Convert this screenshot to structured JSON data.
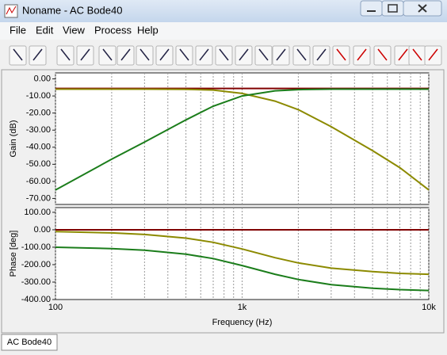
{
  "window": {
    "title": "Noname - AC Bode40"
  },
  "menu": [
    "File",
    "Edit",
    "View",
    "Process",
    "Help"
  ],
  "tab": "AC Bode40",
  "chart_data": [
    {
      "type": "line",
      "ylabel": "Gain (dB)",
      "xscale": "log",
      "xlim": [
        100,
        10000
      ],
      "xticks": [
        100,
        1000,
        10000
      ],
      "xminorticks": [
        200,
        300,
        400,
        500,
        600,
        700,
        800,
        900,
        2000,
        3000,
        4000,
        5000,
        6000,
        7000,
        8000,
        9000
      ],
      "ylim": [
        -73.5,
        3.5
      ],
      "yticks": [
        {
          "value": 0,
          "label": "0.00"
        },
        {
          "value": -10,
          "label": "-10.00"
        },
        {
          "value": -20,
          "label": "-20.00"
        },
        {
          "value": -30,
          "label": "-30.00"
        },
        {
          "value": -40,
          "label": "-40.00"
        },
        {
          "value": -50,
          "label": "-50.00"
        },
        {
          "value": -60,
          "label": "-60.00"
        },
        {
          "value": -70,
          "label": "-70.00"
        }
      ],
      "x": [
        100,
        200,
        300,
        500,
        700,
        1000,
        1500,
        2000,
        3000,
        5000,
        7000,
        10000
      ],
      "series": [
        {
          "color": "#800000",
          "values": [
            -5.6,
            -5.6,
            -5.6,
            -5.6,
            -5.6,
            -5.6,
            -5.6,
            -5.6,
            -5.6,
            -5.6,
            -5.6,
            -5.6
          ]
        },
        {
          "color": "#8c8a00",
          "values": [
            -6,
            -6,
            -6,
            -6.1,
            -6.5,
            -8.5,
            -13,
            -18,
            -28,
            -42,
            -52,
            -65
          ]
        },
        {
          "color": "#1b7d1b",
          "values": [
            -65,
            -47,
            -37,
            -24,
            -16,
            -10,
            -7,
            -6.3,
            -6,
            -6,
            -6,
            -6
          ]
        }
      ]
    },
    {
      "type": "line",
      "ylabel": "Phase [deg]",
      "xlabel": "Frequency (Hz)",
      "xscale": "log",
      "xlim": [
        100,
        10000
      ],
      "xticks": [
        100,
        {
          "value": 1000,
          "label": "1k"
        },
        {
          "value": 10000,
          "label": "10k"
        }
      ],
      "xminorticks": [
        200,
        300,
        400,
        500,
        600,
        700,
        800,
        900,
        2000,
        3000,
        4000,
        5000,
        6000,
        7000,
        8000,
        9000
      ],
      "ylim": [
        -400,
        127
      ],
      "yticks": [
        {
          "value": 100,
          "label": "100.00"
        },
        {
          "value": 0,
          "label": "0.00"
        },
        {
          "value": -100,
          "label": "-100.00"
        },
        {
          "value": -200,
          "label": "-200.00"
        },
        {
          "value": -300,
          "label": "-300.00"
        },
        {
          "value": -400,
          "label": "-400.00"
        }
      ],
      "x": [
        100,
        200,
        300,
        500,
        700,
        1000,
        1500,
        2000,
        3000,
        5000,
        7000,
        10000
      ],
      "series": [
        {
          "color": "#800000",
          "values": [
            0,
            0,
            0,
            0,
            0,
            0,
            0,
            0,
            0,
            0,
            0,
            0
          ]
        },
        {
          "color": "#8c8a00",
          "values": [
            -10,
            -18,
            -27,
            -48,
            -72,
            -110,
            -160,
            -190,
            -220,
            -240,
            -250,
            -255
          ]
        },
        {
          "color": "#1b7d1b",
          "values": [
            -100,
            -108,
            -117,
            -140,
            -165,
            -205,
            -255,
            -285,
            -315,
            -335,
            -343,
            -348
          ]
        }
      ]
    }
  ]
}
